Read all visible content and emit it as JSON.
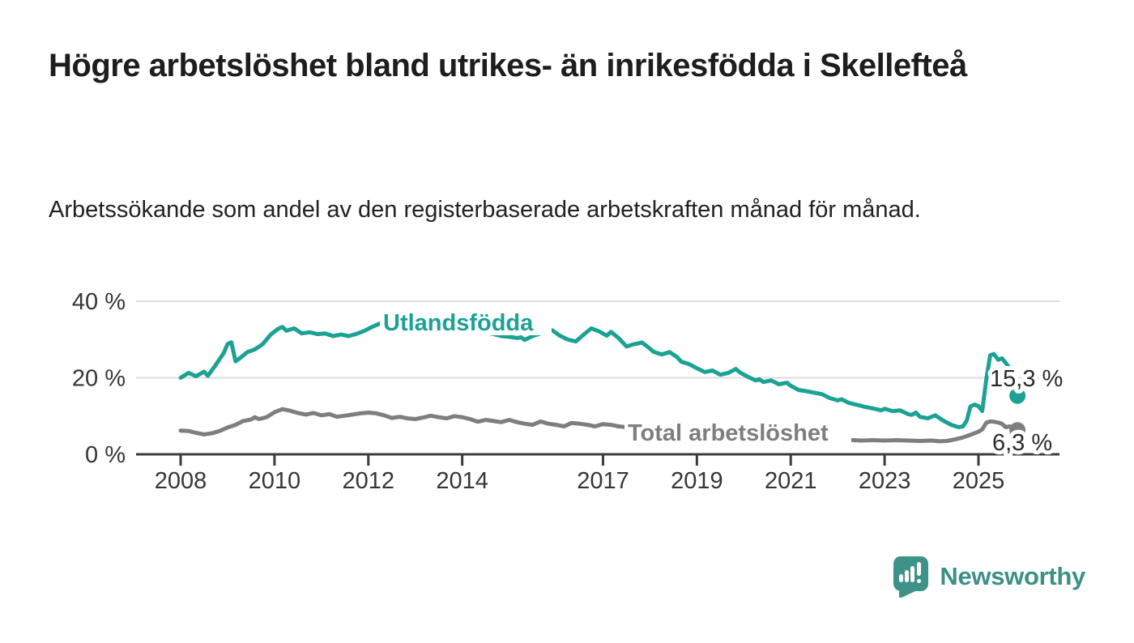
{
  "header": {
    "title": "Högre arbetslöshet bland utrikes- än inrikesfödda i Skellefteå",
    "subtitle": "Arbetssökande som andel av den registerbaserade arbetskraften månad för månad."
  },
  "footer": {
    "brand": "Newsworthy",
    "logo_icon": "bar-chart-speech-bubble"
  },
  "colors": {
    "accent_teal": "#1ba294",
    "series_gray": "#7e7e7e",
    "text_dark": "#1d1d1b",
    "axis_dark": "#3c3c3c",
    "grid_light": "#dcdcdc",
    "value_label": "#2b2b2b",
    "logo_teal": "#3f9288"
  },
  "chart_data": {
    "type": "line",
    "title": "Högre arbetslöshet bland utrikes- än inrikesfödda i Skellefteå",
    "subtitle": "Arbetssökande som andel av den registerbaserade arbetskraften månad för månad.",
    "xlabel": "",
    "ylabel": "",
    "xlim": [
      2007.05,
      2026.7
    ],
    "ylim": [
      0,
      42
    ],
    "grid": "horizontal",
    "legend": "inline-labels",
    "x_ticks": [
      2008,
      2010,
      2012,
      2014,
      2017,
      2019,
      2021,
      2023,
      2025
    ],
    "y_ticks": [
      {
        "value": 0,
        "label": "0 %"
      },
      {
        "value": 20,
        "label": "20 %"
      },
      {
        "value": 40,
        "label": "40 %"
      }
    ],
    "series": [
      {
        "name": "Utlandsfödda",
        "color": "#1ba294",
        "end_value": 15.3,
        "end_label": "15,3 %",
        "points": [
          [
            2008.0,
            20.0
          ],
          [
            2008.17,
            21.3
          ],
          [
            2008.33,
            20.4
          ],
          [
            2008.5,
            21.6
          ],
          [
            2008.58,
            20.5
          ],
          [
            2008.75,
            23.4
          ],
          [
            2008.92,
            26.5
          ],
          [
            2009.0,
            28.8
          ],
          [
            2009.08,
            29.3
          ],
          [
            2009.17,
            24.3
          ],
          [
            2009.25,
            25.0
          ],
          [
            2009.42,
            26.7
          ],
          [
            2009.58,
            27.4
          ],
          [
            2009.75,
            28.8
          ],
          [
            2009.92,
            31.3
          ],
          [
            2010.08,
            32.8
          ],
          [
            2010.17,
            33.3
          ],
          [
            2010.25,
            32.3
          ],
          [
            2010.42,
            32.9
          ],
          [
            2010.58,
            31.6
          ],
          [
            2010.75,
            31.9
          ],
          [
            2010.92,
            31.4
          ],
          [
            2011.08,
            31.6
          ],
          [
            2011.25,
            30.9
          ],
          [
            2011.42,
            31.3
          ],
          [
            2011.58,
            30.9
          ],
          [
            2011.75,
            31.5
          ],
          [
            2011.92,
            32.3
          ],
          [
            2012.08,
            33.3
          ],
          [
            2012.25,
            34.2
          ],
          [
            2012.42,
            34.8
          ],
          [
            2012.5,
            34.0
          ],
          [
            2012.67,
            34.9
          ],
          [
            2012.83,
            35.1
          ],
          [
            2013.0,
            35.3
          ],
          [
            2013.17,
            34.7
          ],
          [
            2013.33,
            34.9
          ],
          [
            2013.5,
            34.2
          ],
          [
            2013.67,
            33.8
          ],
          [
            2013.83,
            33.2
          ],
          [
            2014.0,
            33.5
          ],
          [
            2014.17,
            32.8
          ],
          [
            2014.33,
            32.3
          ],
          [
            2014.5,
            31.8
          ],
          [
            2014.67,
            31.4
          ],
          [
            2014.83,
            30.9
          ],
          [
            2015.0,
            30.7
          ],
          [
            2015.17,
            30.4
          ],
          [
            2015.25,
            30.6
          ],
          [
            2015.33,
            29.9
          ],
          [
            2015.5,
            30.9
          ],
          [
            2015.67,
            31.6
          ],
          [
            2015.83,
            32.6
          ],
          [
            2015.92,
            32.4
          ],
          [
            2016.08,
            31.0
          ],
          [
            2016.25,
            30.0
          ],
          [
            2016.42,
            29.5
          ],
          [
            2016.58,
            31.2
          ],
          [
            2016.75,
            32.9
          ],
          [
            2016.92,
            32.1
          ],
          [
            2017.08,
            31.0
          ],
          [
            2017.17,
            32.0
          ],
          [
            2017.33,
            30.4
          ],
          [
            2017.5,
            28.2
          ],
          [
            2017.67,
            28.8
          ],
          [
            2017.83,
            29.2
          ],
          [
            2017.92,
            28.4
          ],
          [
            2018.08,
            26.8
          ],
          [
            2018.25,
            26.1
          ],
          [
            2018.42,
            26.7
          ],
          [
            2018.58,
            25.4
          ],
          [
            2018.67,
            24.2
          ],
          [
            2018.83,
            23.6
          ],
          [
            2019.0,
            22.5
          ],
          [
            2019.17,
            21.5
          ],
          [
            2019.33,
            21.9
          ],
          [
            2019.5,
            20.8
          ],
          [
            2019.67,
            21.3
          ],
          [
            2019.83,
            22.3
          ],
          [
            2019.92,
            21.4
          ],
          [
            2020.08,
            20.3
          ],
          [
            2020.25,
            19.3
          ],
          [
            2020.33,
            19.6
          ],
          [
            2020.42,
            18.9
          ],
          [
            2020.58,
            19.3
          ],
          [
            2020.75,
            18.3
          ],
          [
            2020.92,
            18.7
          ],
          [
            2021.0,
            17.9
          ],
          [
            2021.17,
            16.8
          ],
          [
            2021.33,
            16.5
          ],
          [
            2021.5,
            16.1
          ],
          [
            2021.67,
            15.7
          ],
          [
            2021.83,
            14.7
          ],
          [
            2022.0,
            14.1
          ],
          [
            2022.08,
            14.4
          ],
          [
            2022.25,
            13.4
          ],
          [
            2022.42,
            12.9
          ],
          [
            2022.58,
            12.4
          ],
          [
            2022.75,
            12.0
          ],
          [
            2022.92,
            11.5
          ],
          [
            2023.0,
            11.9
          ],
          [
            2023.17,
            11.3
          ],
          [
            2023.33,
            11.5
          ],
          [
            2023.5,
            10.5
          ],
          [
            2023.58,
            10.3
          ],
          [
            2023.67,
            10.9
          ],
          [
            2023.75,
            9.8
          ],
          [
            2023.92,
            9.4
          ],
          [
            2024.08,
            10.2
          ],
          [
            2024.25,
            8.8
          ],
          [
            2024.42,
            7.7
          ],
          [
            2024.58,
            7.1
          ],
          [
            2024.67,
            7.3
          ],
          [
            2024.75,
            8.8
          ],
          [
            2024.83,
            12.5
          ],
          [
            2024.92,
            13.0
          ],
          [
            2025.0,
            12.6
          ],
          [
            2025.08,
            11.3
          ],
          [
            2025.17,
            19.8
          ],
          [
            2025.25,
            25.9
          ],
          [
            2025.33,
            26.2
          ],
          [
            2025.42,
            24.7
          ],
          [
            2025.5,
            25.1
          ],
          [
            2025.58,
            23.9
          ],
          [
            2025.67,
            22.4
          ],
          [
            2025.83,
            15.3
          ]
        ]
      },
      {
        "name": "Total arbetslöshet",
        "color": "#7e7e7e",
        "end_value": 6.3,
        "end_label": "6,3 %",
        "points": [
          [
            2008.0,
            6.2
          ],
          [
            2008.17,
            6.1
          ],
          [
            2008.33,
            5.6
          ],
          [
            2008.5,
            5.2
          ],
          [
            2008.67,
            5.5
          ],
          [
            2008.83,
            6.1
          ],
          [
            2009.0,
            7.0
          ],
          [
            2009.17,
            7.7
          ],
          [
            2009.33,
            8.7
          ],
          [
            2009.5,
            9.1
          ],
          [
            2009.58,
            9.7
          ],
          [
            2009.67,
            9.2
          ],
          [
            2009.83,
            9.7
          ],
          [
            2010.0,
            11.0
          ],
          [
            2010.17,
            11.8
          ],
          [
            2010.33,
            11.4
          ],
          [
            2010.5,
            10.8
          ],
          [
            2010.67,
            10.4
          ],
          [
            2010.83,
            10.8
          ],
          [
            2011.0,
            10.2
          ],
          [
            2011.17,
            10.5
          ],
          [
            2011.33,
            9.8
          ],
          [
            2011.5,
            10.1
          ],
          [
            2011.67,
            10.4
          ],
          [
            2011.83,
            10.7
          ],
          [
            2012.0,
            10.9
          ],
          [
            2012.17,
            10.7
          ],
          [
            2012.33,
            10.2
          ],
          [
            2012.5,
            9.5
          ],
          [
            2012.67,
            9.8
          ],
          [
            2012.83,
            9.4
          ],
          [
            2013.0,
            9.2
          ],
          [
            2013.17,
            9.6
          ],
          [
            2013.33,
            10.1
          ],
          [
            2013.5,
            9.7
          ],
          [
            2013.67,
            9.4
          ],
          [
            2013.83,
            10.0
          ],
          [
            2014.0,
            9.7
          ],
          [
            2014.17,
            9.2
          ],
          [
            2014.33,
            8.5
          ],
          [
            2014.5,
            9.0
          ],
          [
            2014.67,
            8.7
          ],
          [
            2014.83,
            8.4
          ],
          [
            2015.0,
            9.0
          ],
          [
            2015.17,
            8.4
          ],
          [
            2015.33,
            8.0
          ],
          [
            2015.5,
            7.7
          ],
          [
            2015.67,
            8.6
          ],
          [
            2015.83,
            8.0
          ],
          [
            2016.0,
            7.7
          ],
          [
            2016.17,
            7.3
          ],
          [
            2016.33,
            8.2
          ],
          [
            2016.5,
            8.0
          ],
          [
            2016.67,
            7.7
          ],
          [
            2016.83,
            7.3
          ],
          [
            2017.0,
            7.9
          ],
          [
            2017.17,
            7.7
          ],
          [
            2017.33,
            7.3
          ],
          [
            2017.5,
            7.1
          ],
          [
            2017.75,
            6.9
          ],
          [
            2018.0,
            6.6
          ],
          [
            2018.5,
            6.2
          ],
          [
            2019.0,
            5.8
          ],
          [
            2019.5,
            5.5
          ],
          [
            2020.0,
            5.3
          ],
          [
            2020.5,
            5.0
          ],
          [
            2021.0,
            4.6
          ],
          [
            2021.5,
            4.2
          ],
          [
            2022.0,
            3.9
          ],
          [
            2022.33,
            3.7
          ],
          [
            2022.5,
            3.6
          ],
          [
            2022.75,
            3.7
          ],
          [
            2023.0,
            3.6
          ],
          [
            2023.25,
            3.7
          ],
          [
            2023.5,
            3.6
          ],
          [
            2023.75,
            3.5
          ],
          [
            2024.0,
            3.6
          ],
          [
            2024.17,
            3.4
          ],
          [
            2024.33,
            3.5
          ],
          [
            2024.5,
            3.9
          ],
          [
            2024.67,
            4.4
          ],
          [
            2024.83,
            5.1
          ],
          [
            2025.0,
            5.9
          ],
          [
            2025.08,
            6.5
          ],
          [
            2025.17,
            8.3
          ],
          [
            2025.25,
            8.6
          ],
          [
            2025.33,
            8.5
          ],
          [
            2025.42,
            8.3
          ],
          [
            2025.5,
            8.0
          ],
          [
            2025.58,
            7.1
          ],
          [
            2025.67,
            7.3
          ],
          [
            2025.83,
            6.3
          ]
        ]
      }
    ]
  }
}
